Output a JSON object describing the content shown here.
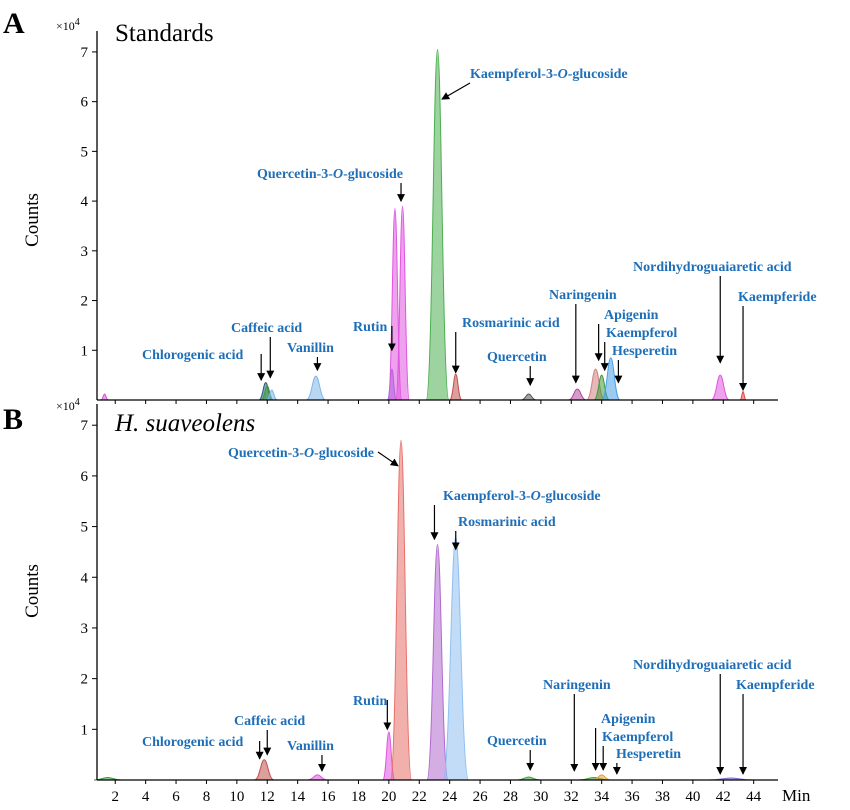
{
  "chart_data": {
    "type": "area",
    "x_unit_label": "Min",
    "x_ticks": [
      2,
      4,
      6,
      8,
      10,
      12,
      14,
      16,
      18,
      20,
      22,
      24,
      26,
      28,
      30,
      32,
      34,
      36,
      38,
      40,
      42,
      44
    ],
    "xlim": [
      0.8,
      45.6
    ],
    "panels": [
      {
        "letter": "A",
        "title": "Standards",
        "title_italic": false,
        "ylabel": "Counts",
        "multiplier": "×10",
        "multiplier_exp": "4",
        "y_ticks": [
          1,
          2,
          3,
          4,
          5,
          6,
          7
        ],
        "ylim": [
          0,
          7.3
        ],
        "peaks": [
          {
            "x": 1.3,
            "h": 0.12,
            "w": 0.5,
            "color": "#c85ac8"
          },
          {
            "x": 11.9,
            "h": 0.35,
            "w": 0.9,
            "color": "#2d5a7a"
          },
          {
            "x": 12.0,
            "h": 0.28,
            "w": 0.8,
            "color": "#3e9a3e"
          },
          {
            "x": 12.3,
            "h": 0.2,
            "w": 0.7,
            "color": "#7fb5e8"
          },
          {
            "x": 15.2,
            "h": 0.48,
            "w": 1.3,
            "color": "#7fb5e8"
          },
          {
            "x": 20.2,
            "h": 0.62,
            "w": 0.6,
            "color": "#7a6fd0"
          },
          {
            "x": 20.4,
            "h": 3.85,
            "w": 0.9,
            "color": "#e055e0"
          },
          {
            "x": 20.9,
            "h": 3.9,
            "w": 0.9,
            "color": "#e055e0"
          },
          {
            "x": 23.2,
            "h": 7.05,
            "w": 1.5,
            "color": "#4caf50"
          },
          {
            "x": 24.4,
            "h": 0.52,
            "w": 0.8,
            "color": "#c0504d"
          },
          {
            "x": 29.2,
            "h": 0.12,
            "w": 1.0,
            "color": "#555555"
          },
          {
            "x": 32.4,
            "h": 0.22,
            "w": 1.2,
            "color": "#b04aa0"
          },
          {
            "x": 33.6,
            "h": 0.62,
            "w": 1.2,
            "color": "#d08080"
          },
          {
            "x": 34.0,
            "h": 0.5,
            "w": 1.0,
            "color": "#3e9a3e"
          },
          {
            "x": 34.6,
            "h": 0.85,
            "w": 1.2,
            "color": "#4aa0e8"
          },
          {
            "x": 41.8,
            "h": 0.5,
            "w": 1.2,
            "color": "#e055e0"
          },
          {
            "x": 43.3,
            "h": 0.17,
            "w": 0.4,
            "color": "#e04040"
          }
        ],
        "labels": [
          {
            "name": "Chlorogenic acid",
            "parts": [
              "Chlorogenic acid"
            ],
            "arrow_to": [
              11.6,
              0.4
            ]
          },
          {
            "name": "Caffeic acid",
            "parts": [
              "Caffeic acid"
            ],
            "arrow_to": [
              12.2,
              0.45
            ]
          },
          {
            "name": "Vanillin",
            "parts": [
              "Vanillin"
            ],
            "arrow_to": [
              15.3,
              0.6
            ]
          },
          {
            "name": "Rutin",
            "parts": [
              "Rutin"
            ],
            "arrow_to": [
              20.2,
              1.0
            ]
          },
          {
            "name": "Quercetin-3-O-glucoside",
            "parts": [
              "Quercetin-3-",
              "O",
              "-glucoside"
            ],
            "arrow_to": [
              20.8,
              4.0
            ]
          },
          {
            "name": "Kaempferol-3-O-glucoside",
            "parts": [
              "Kaempferol-3-",
              "O",
              "-glucoside"
            ],
            "arrow_to": [
              23.5,
              6.05
            ]
          },
          {
            "name": "Rosmarinic acid",
            "parts": [
              "Rosmarinic acid"
            ],
            "arrow_to": [
              24.4,
              0.55
            ]
          },
          {
            "name": "Quercetin",
            "parts": [
              "Quercetin"
            ],
            "arrow_to": [
              29.3,
              0.3
            ]
          },
          {
            "name": "Naringenin",
            "parts": [
              "Naringenin"
            ],
            "arrow_to": [
              32.3,
              0.35
            ]
          },
          {
            "name": "Apigenin",
            "parts": [
              "Apigenin"
            ],
            "arrow_to": [
              33.8,
              0.8
            ]
          },
          {
            "name": "Kaempferol",
            "parts": [
              "Kaempferol"
            ],
            "arrow_to": [
              34.2,
              0.6
            ]
          },
          {
            "name": "Hesperetin",
            "parts": [
              "Hesperetin"
            ],
            "arrow_to": [
              35.1,
              0.35
            ]
          },
          {
            "name": "Nordihydroguaiaretic acid",
            "parts": [
              "Nordihydroguaiaretic acid"
            ],
            "arrow_to": [
              41.8,
              0.75
            ]
          },
          {
            "name": "Kaempferide",
            "parts": [
              "Kaempferide"
            ],
            "arrow_to": [
              43.3,
              0.2
            ]
          }
        ]
      },
      {
        "letter": "B",
        "title": "H. suaveolens",
        "title_italic": true,
        "ylabel": "Counts",
        "multiplier": "×10",
        "multiplier_exp": "4",
        "y_ticks": [
          1,
          2,
          3,
          4,
          5,
          6,
          7
        ],
        "ylim": [
          0,
          7.3
        ],
        "peaks": [
          {
            "x": 1.5,
            "h": 0.05,
            "w": 1.8,
            "color": "#3e9a3e"
          },
          {
            "x": 11.8,
            "h": 0.4,
            "w": 1.3,
            "color": "#c0504d"
          },
          {
            "x": 15.3,
            "h": 0.1,
            "w": 1.3,
            "color": "#e055e0"
          },
          {
            "x": 20.0,
            "h": 0.95,
            "w": 0.8,
            "color": "#e055e0"
          },
          {
            "x": 20.8,
            "h": 6.7,
            "w": 1.4,
            "color": "#e8706a"
          },
          {
            "x": 23.2,
            "h": 4.65,
            "w": 1.4,
            "color": "#b06ad0"
          },
          {
            "x": 24.4,
            "h": 4.8,
            "w": 1.7,
            "color": "#8fc0f0"
          },
          {
            "x": 29.2,
            "h": 0.06,
            "w": 1.5,
            "color": "#3e9a3e"
          },
          {
            "x": 33.5,
            "h": 0.05,
            "w": 2.0,
            "color": "#3e9a3e"
          },
          {
            "x": 34.0,
            "h": 0.1,
            "w": 1.2,
            "color": "#e0a040"
          },
          {
            "x": 42.5,
            "h": 0.04,
            "w": 3.0,
            "color": "#7a6fd0"
          }
        ],
        "labels": [
          {
            "name": "Chlorogenic acid",
            "parts": [
              "Chlorogenic acid"
            ],
            "arrow_to": [
              11.5,
              0.42
            ]
          },
          {
            "name": "Caffeic acid",
            "parts": [
              "Caffeic acid"
            ],
            "arrow_to": [
              12.0,
              0.5
            ]
          },
          {
            "name": "Vanillin",
            "parts": [
              "Vanillin"
            ],
            "arrow_to": [
              15.6,
              0.18
            ]
          },
          {
            "name": "Rutin",
            "parts": [
              "Rutin"
            ],
            "arrow_to": [
              19.9,
              1.0
            ]
          },
          {
            "name": "Quercetin-3-O-glucoside",
            "parts": [
              "Quercetin-3-",
              "O",
              "-glucoside"
            ],
            "arrow_to": [
              20.6,
              6.2
            ]
          },
          {
            "name": "Kaempferol-3-O-glucoside",
            "parts": [
              "Kaempferol-3-",
              "O",
              "-glucoside"
            ],
            "arrow_to": [
              23.0,
              4.75
            ]
          },
          {
            "name": "Rosmarinic acid",
            "parts": [
              "Rosmarinic acid"
            ],
            "arrow_to": [
              24.4,
              4.55
            ]
          },
          {
            "name": "Quercetin",
            "parts": [
              "Quercetin"
            ],
            "arrow_to": [
              29.3,
              0.2
            ]
          },
          {
            "name": "Naringenin",
            "parts": [
              "Naringenin"
            ],
            "arrow_to": [
              32.2,
              0.18
            ]
          },
          {
            "name": "Apigenin",
            "parts": [
              "Apigenin"
            ],
            "arrow_to": [
              33.6,
              0.2
            ]
          },
          {
            "name": "Kaempferol",
            "parts": [
              "Kaempferol"
            ],
            "arrow_to": [
              34.1,
              0.2
            ]
          },
          {
            "name": "Hesperetin",
            "parts": [
              "Hesperetin"
            ],
            "arrow_to": [
              35.0,
              0.12
            ]
          },
          {
            "name": "Nordihydroguaiaretic acid",
            "parts": [
              "Nordihydroguaiaretic acid"
            ],
            "arrow_to": [
              41.8,
              0.12
            ]
          },
          {
            "name": "Kaempferide",
            "parts": [
              "Kaempferide"
            ],
            "arrow_to": [
              43.3,
              0.12
            ]
          }
        ]
      }
    ]
  }
}
